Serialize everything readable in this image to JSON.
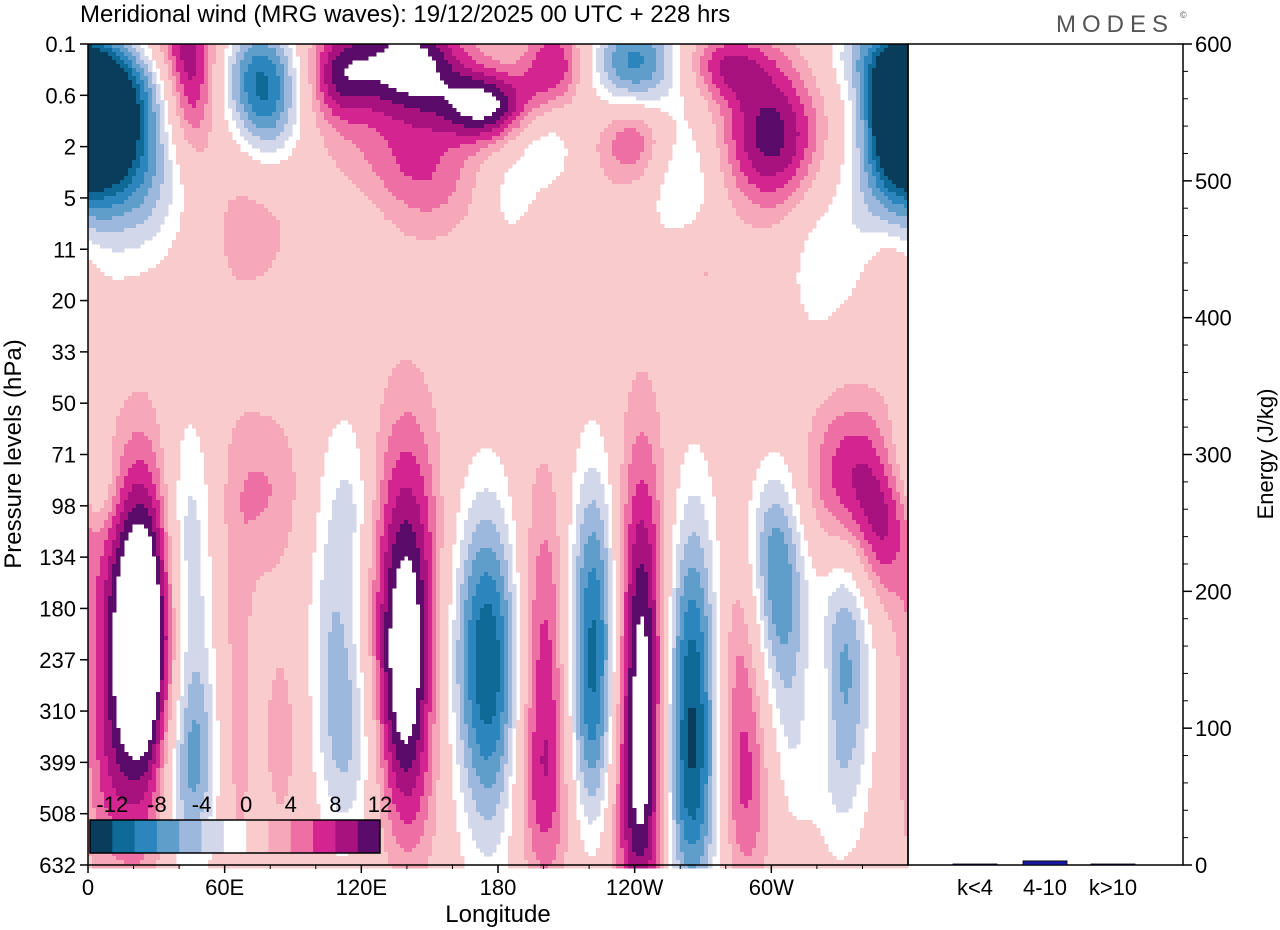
{
  "title": "Meridional wind (MRG waves):  19/12/2025  00 UTC  + 228 hrs",
  "brand": {
    "name": "MODES",
    "mark": "©"
  },
  "colors": {
    "neg": [
      "#0a3d5c",
      "#0f6a98",
      "#2b86be",
      "#5f9ecb",
      "#9cb8dc",
      "#d3d7ea"
    ],
    "pos": [
      "#f8cccc",
      "#f6a8b8",
      "#ee6fa3",
      "#d4248f",
      "#a8127f",
      "#5b0c6a"
    ],
    "bar": "#1a1aa0"
  },
  "chart_data": [
    {
      "type": "heatmap",
      "title": "Meridional wind (MRG waves):  19/12/2025  00 UTC  + 228 hrs",
      "xlabel": "Longitude",
      "ylabel": "Pressure levels (hPa)",
      "x_ticks": [
        "0",
        "60E",
        "120E",
        "180",
        "120W",
        "60W"
      ],
      "x_tick_lon": [
        0,
        60,
        120,
        180,
        240,
        300
      ],
      "xlim": [
        0,
        360
      ],
      "y_ticks": [
        "0.1",
        "0.6",
        "2",
        "5",
        "11",
        "20",
        "33",
        "50",
        "71",
        "98",
        "134",
        "180",
        "237",
        "310",
        "399",
        "508",
        "632"
      ],
      "colorbar": {
        "labels": [
          "-12",
          "-8",
          "-4",
          "0",
          "4",
          "8",
          "12"
        ],
        "levels": [
          -14,
          -12,
          -10,
          -8,
          -6,
          -4,
          -2,
          2,
          4,
          6,
          8,
          10,
          12,
          14
        ]
      },
      "features": [
        {
          "lon": 20,
          "lev": 11.3,
          "val": 11,
          "rl": 12,
          "rv": 2
        },
        {
          "lon": 25,
          "lev": 12.0,
          "val": 10,
          "rl": 9,
          "rv": 2.6
        },
        {
          "lon": 8,
          "lev": 14.3,
          "val": 4,
          "rl": 8,
          "rv": 1.6
        },
        {
          "lon": 43,
          "lev": 9.8,
          "val": -6,
          "rl": 8,
          "rv": 1.8
        },
        {
          "lon": 46,
          "lev": 13.6,
          "val": -7,
          "rl": 8,
          "rv": 1.6
        },
        {
          "lon": 42,
          "lev": 14.5,
          "val": -3,
          "rl": 10,
          "rv": 1.2
        },
        {
          "lon": 65,
          "lev": 13.0,
          "val": 3,
          "rl": 6,
          "rv": 3.5
        },
        {
          "lon": 78,
          "lev": 8.7,
          "val": 4,
          "rl": 12,
          "rv": 1.2
        },
        {
          "lon": 85,
          "lev": 13.5,
          "val": 3,
          "rl": 6,
          "rv": 1.5
        },
        {
          "lon": 108,
          "lev": 11.0,
          "val": -5,
          "rl": 8,
          "rv": 2.5
        },
        {
          "lon": 115,
          "lev": 13.5,
          "val": -5,
          "rl": 9,
          "rv": 1.5
        },
        {
          "lon": 118,
          "lev": 9.0,
          "val": -3,
          "rl": 6,
          "rv": 1.2
        },
        {
          "lon": 140,
          "lev": 10.6,
          "val": 11,
          "rl": 11,
          "rv": 2.4
        },
        {
          "lon": 138,
          "lev": 12.6,
          "val": 7,
          "rl": 8,
          "rv": 1.5
        },
        {
          "lon": 142,
          "lev": 14.8,
          "val": 3,
          "rl": 9,
          "rv": 1.2
        },
        {
          "lon": 175,
          "lev": 11.5,
          "val": -10,
          "rl": 12,
          "rv": 2.0
        },
        {
          "lon": 178,
          "lev": 13.5,
          "val": -6,
          "rl": 11,
          "rv": 2.2
        },
        {
          "lon": 200,
          "lev": 12.3,
          "val": 9,
          "rl": 10,
          "rv": 2.6
        },
        {
          "lon": 200,
          "lev": 14.6,
          "val": 3,
          "rl": 10,
          "rv": 1.2
        },
        {
          "lon": 222,
          "lev": 11.4,
          "val": -13,
          "rl": 9,
          "rv": 2.2
        },
        {
          "lon": 220,
          "lev": 13.8,
          "val": -4,
          "rl": 8,
          "rv": 1.4
        },
        {
          "lon": 243,
          "lev": 12.3,
          "val": 15,
          "rl": 9,
          "rv": 3.0
        },
        {
          "lon": 243,
          "lev": 15.2,
          "val": 4,
          "rl": 8,
          "rv": 1.4
        },
        {
          "lon": 265,
          "lev": 12.8,
          "val": -15,
          "rl": 10,
          "rv": 2.6
        },
        {
          "lon": 265,
          "lev": 15.0,
          "val": -3,
          "rl": 10,
          "rv": 1.2
        },
        {
          "lon": 286,
          "lev": 12.5,
          "val": 7,
          "rl": 10,
          "rv": 2.4
        },
        {
          "lon": 288,
          "lev": 14.8,
          "val": 3,
          "rl": 9,
          "rv": 1.2
        },
        {
          "lon": 295,
          "lev": 9.5,
          "val": -2.5,
          "rl": 10,
          "rv": 1.0
        },
        {
          "lon": 303,
          "lev": 10.7,
          "val": -10,
          "rl": 9,
          "rv": 1.6
        },
        {
          "lon": 308,
          "lev": 13.8,
          "val": -3,
          "rl": 8,
          "rv": 1.4
        },
        {
          "lon": 322,
          "lev": 12.6,
          "val": 3,
          "rl": 5,
          "rv": 1.2
        },
        {
          "lon": 332,
          "lev": 11.7,
          "val": -8,
          "rl": 9,
          "rv": 1.8
        },
        {
          "lon": 330,
          "lev": 14.2,
          "val": -3,
          "rl": 9,
          "rv": 1.4
        },
        {
          "lon": 335,
          "lev": 8.6,
          "val": 9,
          "rl": 14,
          "rv": 1.2
        },
        {
          "lon": 350,
          "lev": 9.4,
          "val": 5,
          "rl": 8,
          "rv": 1.2
        },
        {
          "lon": 355,
          "lev": 8.1,
          "val": -3,
          "rl": 8,
          "rv": 0.7
        },
        {
          "lon": 5,
          "lev": 8.7,
          "val": -3,
          "rl": 6,
          "rv": 0.6
        },
        {
          "lon": 40,
          "lev": 0.0,
          "val": 6,
          "rl": 12,
          "rv": 0.6
        },
        {
          "lon": 20,
          "lev": 0.6,
          "val": -6,
          "rl": 14,
          "rv": 0.7
        },
        {
          "lon": 5,
          "lev": 1.4,
          "val": -14,
          "rl": 10,
          "rv": 0.8
        },
        {
          "lon": 15,
          "lev": 2.0,
          "val": -8,
          "rl": 16,
          "rv": 1.0
        },
        {
          "lon": 20,
          "lev": 3.0,
          "val": -4,
          "rl": 20,
          "rv": 1.2
        },
        {
          "lon": 45,
          "lev": 1.0,
          "val": 8,
          "rl": 8,
          "rv": 0.9
        },
        {
          "lon": 75,
          "lev": 0.6,
          "val": -10,
          "rl": 12,
          "rv": 0.8
        },
        {
          "lon": 80,
          "lev": 1.5,
          "val": -5,
          "rl": 10,
          "rv": 0.8
        },
        {
          "lon": 70,
          "lev": 3.5,
          "val": 3,
          "rl": 18,
          "rv": 1.2
        },
        {
          "lon": 110,
          "lev": 0.6,
          "val": 8,
          "rl": 10,
          "rv": 0.7
        },
        {
          "lon": 140,
          "lev": 0.4,
          "val": 14,
          "rl": 18,
          "rv": 0.8
        },
        {
          "lon": 175,
          "lev": 1.2,
          "val": 12,
          "rl": 14,
          "rv": 0.5
        },
        {
          "lon": 135,
          "lev": 2.2,
          "val": 3,
          "rl": 20,
          "rv": 0.6
        },
        {
          "lon": 150,
          "lev": 2.8,
          "val": 4,
          "rl": 16,
          "rv": 0.8
        },
        {
          "lon": 205,
          "lev": 0.4,
          "val": 8,
          "rl": 10,
          "rv": 0.6
        },
        {
          "lon": 200,
          "lev": 2.0,
          "val": -4,
          "rl": 10,
          "rv": 0.6
        },
        {
          "lon": 240,
          "lev": 0.5,
          "val": -12,
          "rl": 14,
          "rv": 0.8
        },
        {
          "lon": 240,
          "lev": 1.7,
          "val": 9,
          "rl": 12,
          "rv": 0.7
        },
        {
          "lon": 260,
          "lev": 2.5,
          "val": -5,
          "rl": 12,
          "rv": 1.0
        },
        {
          "lon": 280,
          "lev": 0.4,
          "val": 7,
          "rl": 14,
          "rv": 0.5
        },
        {
          "lon": 300,
          "lev": 1.8,
          "val": 11,
          "rl": 16,
          "rv": 1.0
        },
        {
          "lon": 345,
          "lev": 0.2,
          "val": -6,
          "rl": 14,
          "rv": 0.6
        },
        {
          "lon": 355,
          "lev": 1.3,
          "val": -14,
          "rl": 10,
          "rv": 1.0
        },
        {
          "lon": 345,
          "lev": 3.0,
          "val": -4,
          "rl": 14,
          "rv": 1.4
        },
        {
          "lon": 320,
          "lev": 4.3,
          "val": -3,
          "rl": 10,
          "rv": 1.2
        },
        {
          "lon": 352,
          "lev": 4.3,
          "val": 3,
          "rl": 8,
          "rv": 0.6
        },
        {
          "lon": 270,
          "lev": 4.4,
          "val": 2.5,
          "rl": 10,
          "rv": 0.6
        },
        {
          "lon": 185,
          "lev": 3.0,
          "val": -3,
          "rl": 8,
          "rv": 0.6
        }
      ]
    },
    {
      "type": "bar",
      "ylabel": "Energy (J/kg)",
      "categories": [
        "k<4",
        "4-10",
        "k>10"
      ],
      "values": [
        0.5,
        3,
        0.5
      ],
      "ylim": [
        0,
        600
      ],
      "y_ticks": [
        "0",
        "100",
        "200",
        "300",
        "400",
        "500",
        "600"
      ],
      "y_tick_values": [
        0,
        100,
        200,
        300,
        400,
        500,
        600
      ]
    }
  ]
}
